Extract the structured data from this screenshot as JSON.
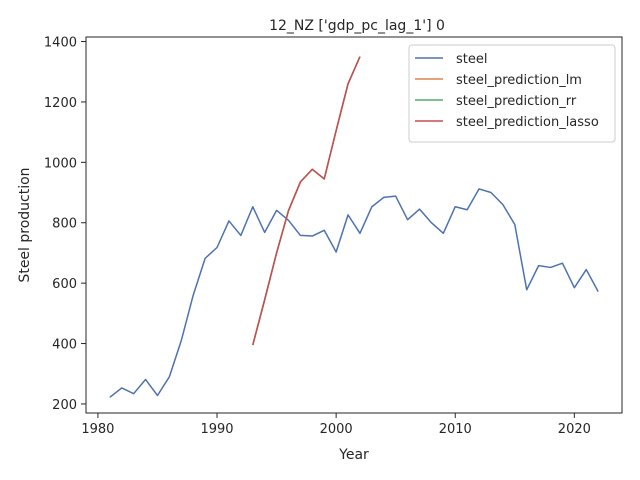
{
  "chart_data": {
    "type": "line",
    "title": "12_NZ ['gdp_pc_lag_1'] 0",
    "xlabel": "Year",
    "ylabel": "Steel production",
    "xlim": [
      1979,
      2024
    ],
    "ylim": [
      170,
      1415
    ],
    "xticks": [
      1980,
      1990,
      2000,
      2010,
      2020
    ],
    "yticks": [
      200,
      400,
      600,
      800,
      1000,
      1200,
      1400
    ],
    "grid": false,
    "legend_position": "top-right",
    "series": [
      {
        "name": "steel",
        "color": "#4c72b0",
        "x": [
          1981,
          1982,
          1983,
          1984,
          1985,
          1986,
          1987,
          1988,
          1989,
          1990,
          1991,
          1992,
          1993,
          1994,
          1995,
          1996,
          1997,
          1998,
          1999,
          2000,
          2001,
          2002,
          2003,
          2004,
          2005,
          2006,
          2007,
          2008,
          2009,
          2010,
          2011,
          2012,
          2013,
          2014,
          2015,
          2016,
          2017,
          2018,
          2019,
          2020,
          2021,
          2022
        ],
        "y": [
          222,
          253,
          234,
          281,
          228,
          290,
          410,
          560,
          682,
          718,
          806,
          758,
          853,
          768,
          841,
          808,
          758,
          756,
          775,
          703,
          826,
          765,
          853,
          884,
          888,
          810,
          845,
          800,
          765,
          853,
          843,
          912,
          900,
          860,
          794,
          578,
          658,
          652,
          666,
          585,
          645,
          572
        ]
      },
      {
        "name": "steel_prediction_lm",
        "color": "#dd8452",
        "x": [
          1993,
          1994,
          1995,
          1996,
          1997,
          1998,
          1999,
          2000,
          2001,
          2002
        ],
        "y": [
          395,
          545,
          700,
          840,
          935,
          977,
          945,
          1105,
          1260,
          1350
        ]
      },
      {
        "name": "steel_prediction_rr",
        "color": "#55a868",
        "x": [
          1993,
          1994,
          1995,
          1996,
          1997,
          1998,
          1999,
          2000,
          2001,
          2002
        ],
        "y": [
          395,
          545,
          700,
          840,
          935,
          977,
          945,
          1105,
          1260,
          1350
        ]
      },
      {
        "name": "steel_prediction_lasso",
        "color": "#c44e52",
        "x": [
          1993,
          1994,
          1995,
          1996,
          1997,
          1998,
          1999,
          2000,
          2001,
          2002
        ],
        "y": [
          395,
          545,
          700,
          840,
          935,
          977,
          945,
          1105,
          1260,
          1350
        ]
      }
    ]
  }
}
